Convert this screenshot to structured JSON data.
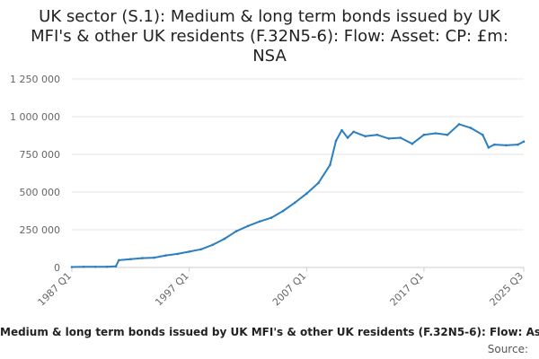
{
  "chart_data": {
    "type": "line",
    "title": "UK sector (S.1): Medium & long term bonds issued by UK MFI's & other UK residents (F.32N5-6): Flow: Asset: CP: £m: NSA",
    "xlabel": "",
    "ylabel": "",
    "ylim": [
      0,
      1250000
    ],
    "y_ticks": [
      0,
      250000,
      500000,
      750000,
      1000000,
      1250000
    ],
    "y_tick_labels": [
      "0",
      "250 000",
      "500 000",
      "750 000",
      "1 000 000",
      "1 250 000"
    ],
    "x_range": [
      "1987 Q1",
      "2025 Q3"
    ],
    "x_ticks": [
      "1987 Q1",
      "1997 Q1",
      "2007 Q1",
      "2017 Q1",
      "2025 Q3"
    ],
    "grid": true,
    "color": "#2c7fbf",
    "series": [
      {
        "name": "Medium & long term bonds issued by UK MFI's & other UK residents (F.32N5-6): Flow: Asset: CP: £m: NSA",
        "points": [
          [
            "1987 Q1",
            3000
          ],
          [
            "1988 Q1",
            4000
          ],
          [
            "1989 Q1",
            4000
          ],
          [
            "1990 Q1",
            5000
          ],
          [
            "1990 Q4",
            8000
          ],
          [
            "1991 Q1",
            48000
          ],
          [
            "1992 Q1",
            55000
          ],
          [
            "1993 Q1",
            62000
          ],
          [
            "1994 Q1",
            65000
          ],
          [
            "1995 Q1",
            80000
          ],
          [
            "1996 Q1",
            90000
          ],
          [
            "1997 Q1",
            105000
          ],
          [
            "1998 Q1",
            120000
          ],
          [
            "1999 Q1",
            150000
          ],
          [
            "2000 Q1",
            190000
          ],
          [
            "2001 Q1",
            240000
          ],
          [
            "2002 Q1",
            275000
          ],
          [
            "2003 Q1",
            305000
          ],
          [
            "2004 Q1",
            330000
          ],
          [
            "2005 Q1",
            375000
          ],
          [
            "2006 Q1",
            430000
          ],
          [
            "2007 Q1",
            490000
          ],
          [
            "2008 Q1",
            560000
          ],
          [
            "2009 Q1",
            680000
          ],
          [
            "2009 Q3",
            840000
          ],
          [
            "2010 Q1",
            910000
          ],
          [
            "2010 Q3",
            860000
          ],
          [
            "2011 Q1",
            900000
          ],
          [
            "2012 Q1",
            870000
          ],
          [
            "2013 Q1",
            880000
          ],
          [
            "2014 Q1",
            855000
          ],
          [
            "2015 Q1",
            860000
          ],
          [
            "2016 Q1",
            820000
          ],
          [
            "2017 Q1",
            880000
          ],
          [
            "2018 Q1",
            890000
          ],
          [
            "2019 Q1",
            880000
          ],
          [
            "2020 Q1",
            950000
          ],
          [
            "2021 Q1",
            925000
          ],
          [
            "2022 Q1",
            880000
          ],
          [
            "2022 Q3",
            795000
          ],
          [
            "2023 Q1",
            815000
          ],
          [
            "2024 Q1",
            810000
          ],
          [
            "2025 Q1",
            815000
          ],
          [
            "2025 Q3",
            835000
          ]
        ]
      }
    ],
    "source": "Source:"
  }
}
